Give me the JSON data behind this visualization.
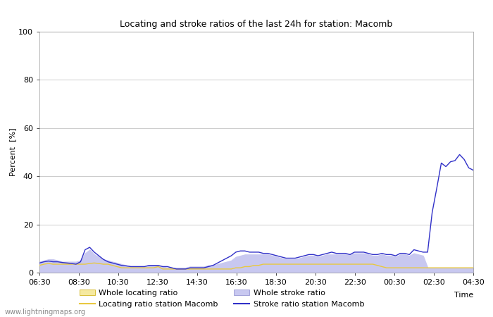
{
  "title": "Locating and stroke ratios of the last 24h for station: Macomb",
  "xlabel": "Time",
  "ylabel": "Percent  [%]",
  "ylim": [
    0,
    100
  ],
  "yticks": [
    0,
    20,
    40,
    60,
    80,
    100
  ],
  "x_tick_labels": [
    "06:30",
    "08:30",
    "10:30",
    "12:30",
    "14:30",
    "16:30",
    "18:30",
    "20:30",
    "22:30",
    "00:30",
    "02:30",
    "04:30"
  ],
  "background_color": "#ffffff",
  "plot_bg_color": "#ffffff",
  "grid_color": "#cccccc",
  "watermark": "www.lightningmaps.org",
  "legend_labels": [
    "Whole locating ratio",
    "Locating ratio station Macomb",
    "Whole stroke ratio",
    "Stroke ratio station Macomb"
  ],
  "whole_locating_fill_color": "#f5e9a0",
  "whole_stroke_fill_color": "#c8c8f0",
  "locating_line_color": "#e8c840",
  "stroke_line_color": "#3030c8",
  "whole_locating": [
    1.5,
    1.5,
    1.5,
    1.5,
    1.5,
    1.5,
    1.5,
    1.5,
    1.5,
    1.5,
    1.5,
    1.5,
    1.5,
    1.5,
    1.5,
    1.5,
    1.5,
    1.5,
    1.5,
    1.5,
    1.5,
    1.5,
    1.5,
    1.5,
    1.5,
    1.5,
    1.5,
    1.5,
    1.5,
    1.5,
    1.5,
    1.5,
    1.5,
    1.5,
    1.5,
    1.5,
    1.5,
    1.5,
    1.5,
    1.5,
    1.5,
    1.5,
    1.5,
    1.5,
    1.5,
    1.5,
    1.5,
    1.5,
    1.5,
    1.5,
    1.5,
    1.5,
    1.5,
    1.5,
    1.5,
    1.5,
    1.5,
    1.5,
    1.5,
    1.5,
    1.5,
    1.5,
    1.5,
    1.5,
    1.5,
    1.5,
    1.5,
    1.5,
    1.5,
    1.5,
    1.5,
    1.5,
    1.5,
    1.5,
    1.5,
    1.5,
    1.5,
    1.5,
    1.5,
    1.5,
    1.5,
    1.5,
    1.5,
    1.5,
    1.5,
    1.5,
    1.5,
    1.5,
    1.5,
    1.5,
    1.5,
    1.5,
    1.5,
    1.5,
    1.5,
    1.5
  ],
  "locating_station": [
    3.0,
    3.5,
    3.8,
    3.5,
    3.5,
    3.5,
    3.5,
    3.5,
    3.5,
    3.5,
    3.5,
    3.8,
    4.0,
    3.8,
    3.5,
    3.5,
    3.0,
    2.5,
    2.0,
    2.0,
    2.0,
    2.0,
    2.0,
    2.0,
    2.0,
    2.0,
    2.5,
    1.5,
    1.5,
    1.5,
    1.5,
    1.5,
    1.5,
    1.5,
    1.5,
    1.5,
    1.5,
    1.5,
    1.5,
    1.5,
    1.5,
    1.5,
    1.5,
    2.0,
    2.0,
    2.5,
    2.5,
    3.0,
    3.0,
    3.5,
    3.5,
    3.5,
    3.5,
    3.5,
    3.5,
    3.5,
    3.5,
    3.5,
    3.5,
    3.5,
    3.5,
    3.5,
    3.5,
    3.5,
    3.5,
    3.5,
    3.5,
    3.5,
    3.5,
    3.5,
    3.5,
    3.5,
    3.5,
    3.5,
    3.0,
    2.5,
    2.0,
    2.0,
    2.0,
    2.0,
    2.0,
    2.0,
    2.0,
    2.0,
    2.0,
    2.0,
    2.0,
    2.0,
    2.0,
    2.0,
    2.0,
    2.0,
    2.0,
    2.0,
    2.0,
    2.0
  ],
  "whole_stroke": [
    4.5,
    5.0,
    5.5,
    5.5,
    5.0,
    4.5,
    4.5,
    4.5,
    4.5,
    5.0,
    8.0,
    9.5,
    7.5,
    6.5,
    5.5,
    5.0,
    4.5,
    4.0,
    3.5,
    3.0,
    2.5,
    2.5,
    2.5,
    2.5,
    3.0,
    3.0,
    3.0,
    2.5,
    2.0,
    2.0,
    2.0,
    2.0,
    2.0,
    2.5,
    2.5,
    2.5,
    2.5,
    3.0,
    3.0,
    3.5,
    4.0,
    4.5,
    5.0,
    6.5,
    7.0,
    7.5,
    7.5,
    7.5,
    7.5,
    7.5,
    7.5,
    7.0,
    6.5,
    6.0,
    5.5,
    5.5,
    5.5,
    6.0,
    6.5,
    7.0,
    7.0,
    6.5,
    7.0,
    7.5,
    7.5,
    7.5,
    7.5,
    7.5,
    7.5,
    8.0,
    8.0,
    8.0,
    7.5,
    7.0,
    7.0,
    7.5,
    7.0,
    7.0,
    6.5,
    7.5,
    7.5,
    7.0,
    8.0,
    7.5,
    7.0,
    2.0,
    2.0,
    2.0,
    2.0,
    2.0,
    2.0,
    2.0,
    2.0,
    2.0,
    2.0,
    2.0
  ],
  "stroke_station": [
    4.0,
    4.5,
    4.8,
    4.5,
    4.5,
    4.2,
    4.0,
    3.8,
    3.5,
    4.5,
    9.5,
    10.5,
    8.5,
    7.0,
    5.5,
    4.5,
    4.0,
    3.5,
    3.0,
    2.8,
    2.5,
    2.5,
    2.5,
    2.5,
    3.0,
    3.0,
    3.0,
    2.5,
    2.5,
    2.0,
    1.5,
    1.5,
    1.5,
    2.0,
    2.0,
    2.0,
    2.0,
    2.5,
    3.0,
    4.0,
    5.0,
    6.0,
    7.0,
    8.5,
    9.0,
    9.0,
    8.5,
    8.5,
    8.5,
    8.0,
    8.0,
    7.5,
    7.0,
    6.5,
    6.0,
    6.0,
    6.0,
    6.5,
    7.0,
    7.5,
    7.5,
    7.0,
    7.5,
    8.0,
    8.5,
    8.0,
    8.0,
    8.0,
    7.5,
    8.5,
    8.5,
    8.5,
    8.0,
    7.5,
    7.5,
    8.0,
    7.5,
    7.5,
    7.0,
    8.0,
    8.0,
    7.5,
    9.5,
    9.0,
    8.5,
    8.5,
    25.0,
    35.0,
    45.5,
    44.0,
    46.0,
    46.5,
    49.0,
    47.0,
    43.5,
    42.5
  ]
}
